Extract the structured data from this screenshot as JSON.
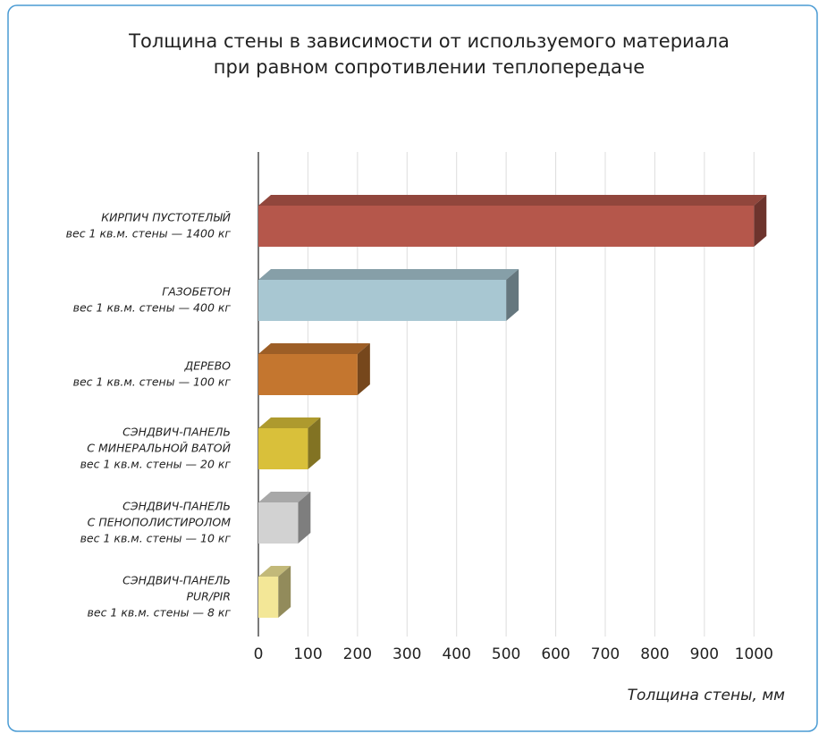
{
  "chart_data": {
    "type": "bar3d",
    "title": [
      "Толщина стены в зависимости от используемого материала",
      "при равном сопротивлении теплопередаче"
    ],
    "categories": [
      [
        "КИРПИЧ ПУСТОТЕЛЫЙ",
        "вес 1 кв.м. стены — 1400 кг"
      ],
      [
        "ГАЗОБЕТОН",
        "вес 1 кв.м. стены — 400 кг"
      ],
      [
        "ДЕРЕВО",
        "вес 1 кв.м. стены — 100 кг"
      ],
      [
        "СЭНДВИЧ-ПАНЕЛЬ",
        "С МИНЕРАЛЬНОЙ ВАТОЙ",
        "вес 1 кв.м. стены — 20 кг"
      ],
      [
        "СЭНДВИЧ-ПАНЕЛЬ",
        "С ПЕНОПОЛИСТИРОЛОМ",
        "вес 1 кв.м. стены — 10 кг"
      ],
      [
        "СЭНДВИЧ-ПАНЕЛЬ",
        "PUR/PIR",
        "вес 1 кв.м. стены — 8 кг"
      ]
    ],
    "values": [
      1000,
      500,
      200,
      100,
      80,
      40
    ],
    "colors": [
      "#b5574b",
      "#a8c7d2",
      "#c4762f",
      "#d9c03a",
      "#d2d2d2",
      "#f3e797"
    ],
    "xlim": [
      0,
      1050
    ],
    "xticks": [
      0,
      100,
      200,
      300,
      400,
      500,
      600,
      700,
      800,
      900,
      1000
    ],
    "xlabel": "Толщина стены, мм",
    "grid": true
  }
}
